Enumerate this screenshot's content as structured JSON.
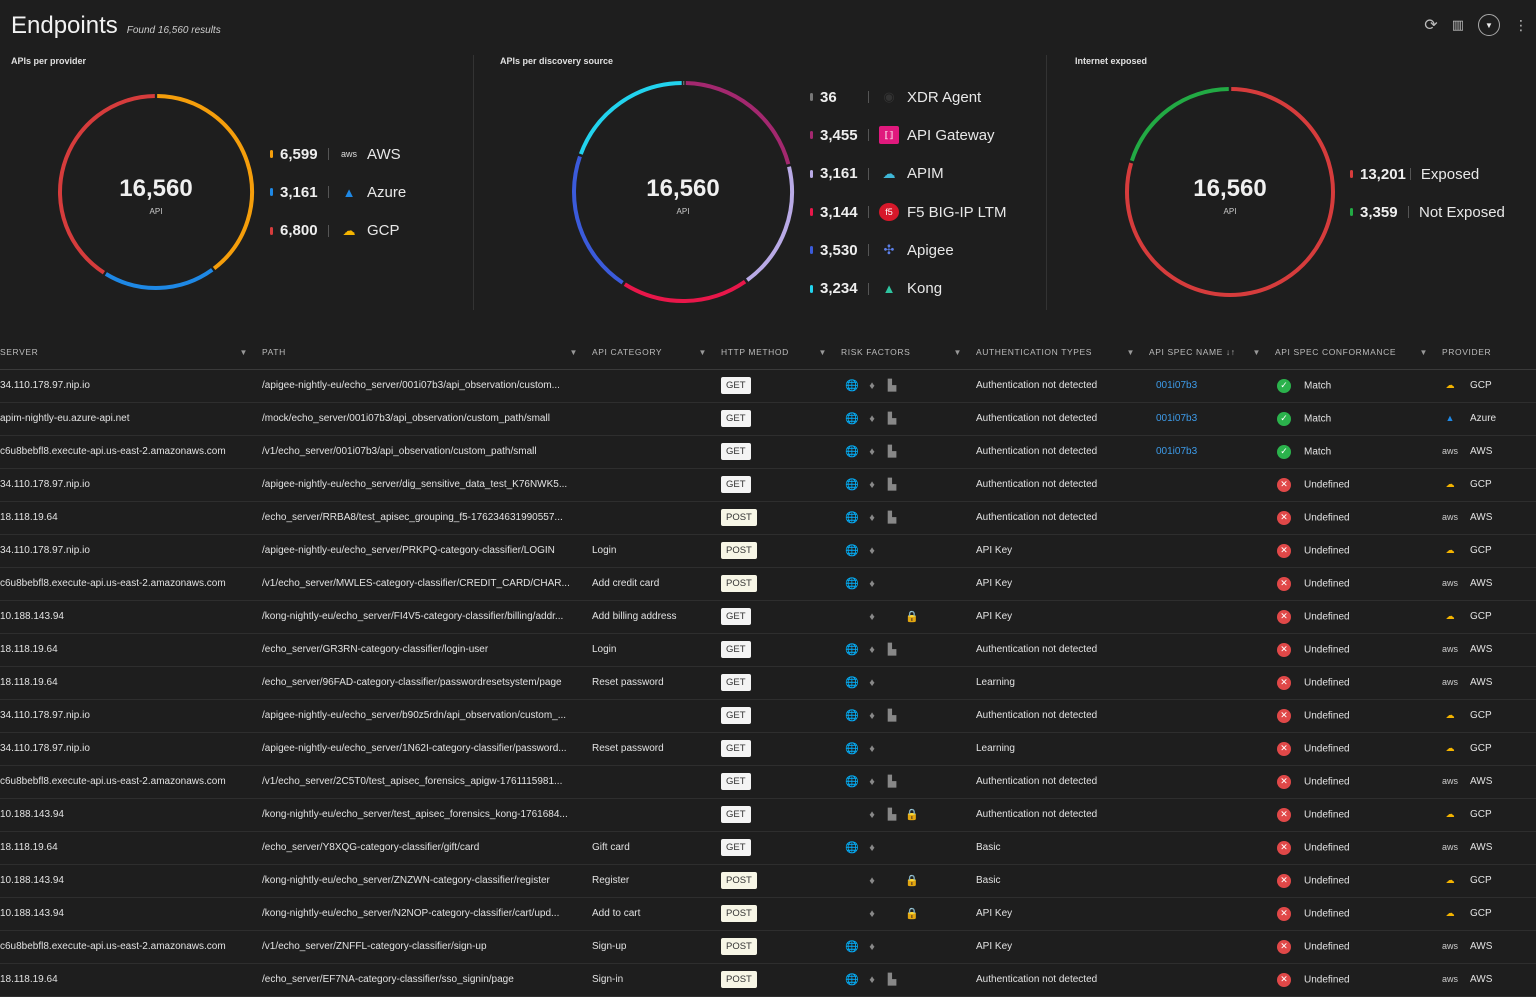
{
  "header": {
    "title": "Endpoints",
    "subtitle": "Found 16,560 results"
  },
  "toolbar": {
    "icons": [
      "refresh-icon",
      "chart-icon",
      "filter-icon",
      "more-icon"
    ]
  },
  "panels": [
    {
      "title": "APIs per provider",
      "total": "16,560",
      "unit": "API",
      "items": [
        {
          "value": 6599,
          "label_value": "6,599",
          "label": "AWS",
          "color": "#f59e0b",
          "icon": "aws-icon"
        },
        {
          "value": 3161,
          "label_value": "3,161",
          "label": "Azure",
          "color": "#1e88e5",
          "icon": "azure-icon"
        },
        {
          "value": 6800,
          "label_value": "6,800",
          "label": "GCP",
          "color": "#d63c3c",
          "icon": "gcp-icon"
        }
      ]
    },
    {
      "title": "APIs per discovery source",
      "total": "16,560",
      "unit": "API",
      "items": [
        {
          "value": 36,
          "label_value": "36",
          "label": "XDR Agent",
          "color": "#777777",
          "icon": "xdr-agent-icon"
        },
        {
          "value": 3455,
          "label_value": "3,455",
          "label": "API Gateway",
          "color": "#a3286f",
          "icon": "api-gateway-icon"
        },
        {
          "value": 3161,
          "label_value": "3,161",
          "label": "APIM",
          "color": "#b9aae6",
          "icon": "apim-icon"
        },
        {
          "value": 3144,
          "label_value": "3,144",
          "label": "F5 BIG-IP LTM",
          "color": "#e8174a",
          "icon": "f5-icon"
        },
        {
          "value": 3530,
          "label_value": "3,530",
          "label": "Apigee",
          "color": "#3b5bdb",
          "icon": "apigee-icon"
        },
        {
          "value": 3234,
          "label_value": "3,234",
          "label": "Kong",
          "color": "#22d3ee",
          "icon": "kong-icon"
        }
      ]
    },
    {
      "title": "Internet exposed",
      "total": "16,560",
      "unit": "API",
      "items": [
        {
          "value": 13201,
          "label_value": "13,201",
          "label": "Exposed",
          "color": "#d63c3c"
        },
        {
          "value": 3359,
          "label_value": "3,359",
          "label": "Not Exposed",
          "color": "#22aa44"
        }
      ]
    }
  ],
  "table": {
    "columns": [
      "SERVER",
      "PATH",
      "API CATEGORY",
      "HTTP METHOD",
      "RISK FACTORS",
      "AUTHENTICATION TYPES",
      "API SPEC NAME ↓↑",
      "API SPEC CONFORMANCE",
      "PROVIDER"
    ],
    "rows": [
      [
        "34.110.178.97.nip.io",
        "/apigee-nightly-eu/echo_server/001i07b3/api_observation/custom...",
        "",
        "GET",
        "gdb",
        "Authentication not detected",
        "001i07b3",
        "Match",
        "GCP"
      ],
      [
        "apim-nightly-eu.azure-api.net",
        "/mock/echo_server/001i07b3/api_observation/custom_path/small",
        "",
        "GET",
        "gdb",
        "Authentication not detected",
        "001i07b3",
        "Match",
        "Azure"
      ],
      [
        "c6u8bebfl8.execute-api.us-east-2.amazonaws.com",
        "/v1/echo_server/001i07b3/api_observation/custom_path/small",
        "",
        "GET",
        "gdb",
        "Authentication not detected",
        "001i07b3",
        "Match",
        "AWS"
      ],
      [
        "34.110.178.97.nip.io",
        "/apigee-nightly-eu/echo_server/dig_sensitive_data_test_K76NWK5...",
        "",
        "GET",
        "gdb",
        "Authentication not detected",
        "",
        "Undefined",
        "GCP"
      ],
      [
        "18.118.19.64",
        "/echo_server/RRBA8/test_apisec_grouping_f5-176234631990557...",
        "",
        "POST",
        "gdb",
        "Authentication not detected",
        "",
        "Undefined",
        "AWS"
      ],
      [
        "34.110.178.97.nip.io",
        "/apigee-nightly-eu/echo_server/PRKPQ-category-classifier/LOGIN",
        "Login",
        "POST",
        "gd",
        "API Key",
        "",
        "Undefined",
        "GCP"
      ],
      [
        "c6u8bebfl8.execute-api.us-east-2.amazonaws.com",
        "/v1/echo_server/MWLES-category-classifier/CREDIT_CARD/CHAR...",
        "Add credit card",
        "POST",
        "gd",
        "API Key",
        "",
        "Undefined",
        "AWS"
      ],
      [
        "10.188.143.94",
        "/kong-nightly-eu/echo_server/FI4V5-category-classifier/billing/addr...",
        "Add billing address",
        "GET",
        "dl",
        "API Key",
        "",
        "Undefined",
        "GCP"
      ],
      [
        "18.118.19.64",
        "/echo_server/GR3RN-category-classifier/login-user",
        "Login",
        "GET",
        "gdb",
        "Authentication not detected",
        "",
        "Undefined",
        "AWS"
      ],
      [
        "18.118.19.64",
        "/echo_server/96FAD-category-classifier/passwordresetsystem/page",
        "Reset password",
        "GET",
        "gd",
        "Learning",
        "",
        "Undefined",
        "AWS"
      ],
      [
        "34.110.178.97.nip.io",
        "/apigee-nightly-eu/echo_server/b90z5rdn/api_observation/custom_...",
        "",
        "GET",
        "gdb",
        "Authentication not detected",
        "",
        "Undefined",
        "GCP"
      ],
      [
        "34.110.178.97.nip.io",
        "/apigee-nightly-eu/echo_server/1N62I-category-classifier/password...",
        "Reset password",
        "GET",
        "gd",
        "Learning",
        "",
        "Undefined",
        "GCP"
      ],
      [
        "c6u8bebfl8.execute-api.us-east-2.amazonaws.com",
        "/v1/echo_server/2C5T0/test_apisec_forensics_apigw-1761115981...",
        "",
        "GET",
        "gdb",
        "Authentication not detected",
        "",
        "Undefined",
        "AWS"
      ],
      [
        "10.188.143.94",
        "/kong-nightly-eu/echo_server/test_apisec_forensics_kong-1761684...",
        "",
        "GET",
        "dbl",
        "Authentication not detected",
        "",
        "Undefined",
        "GCP"
      ],
      [
        "18.118.19.64",
        "/echo_server/Y8XQG-category-classifier/gift/card",
        "Gift card",
        "GET",
        "gd",
        "Basic",
        "",
        "Undefined",
        "AWS"
      ],
      [
        "10.188.143.94",
        "/kong-nightly-eu/echo_server/ZNZWN-category-classifier/register",
        "Register",
        "POST",
        "dl",
        "Basic",
        "",
        "Undefined",
        "GCP"
      ],
      [
        "10.188.143.94",
        "/kong-nightly-eu/echo_server/N2NOP-category-classifier/cart/upd...",
        "Add to cart",
        "POST",
        "dl",
        "API Key",
        "",
        "Undefined",
        "GCP"
      ],
      [
        "c6u8bebfl8.execute-api.us-east-2.amazonaws.com",
        "/v1/echo_server/ZNFFL-category-classifier/sign-up",
        "Sign-up",
        "POST",
        "gd",
        "API Key",
        "",
        "Undefined",
        "AWS"
      ],
      [
        "18.118.19.64",
        "/echo_server/EF7NA-category-classifier/sso_signin/page",
        "Sign-in",
        "POST",
        "gdb",
        "Authentication not detected",
        "",
        "Undefined",
        "AWS"
      ]
    ]
  }
}
